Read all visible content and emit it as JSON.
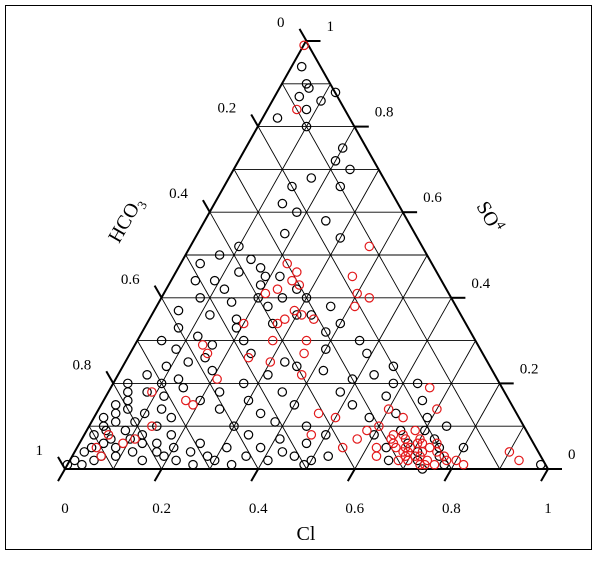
{
  "chart_data": {
    "type": "scatter",
    "subtype": "ternary",
    "axes": {
      "bottom": {
        "label": "Cl",
        "range": [
          0,
          1
        ]
      },
      "left": {
        "label": "HCO",
        "label_sub": "3",
        "range": [
          0,
          1
        ]
      },
      "right": {
        "label": "SO",
        "label_sub": "4",
        "range": [
          0,
          1
        ]
      }
    },
    "bottom_ticks": [
      "0",
      "0.2",
      "0.4",
      "0.6",
      "0.8",
      "1"
    ],
    "left_ticks": [
      "1",
      "0.8",
      "0.6",
      "0.4",
      "0.2",
      "0"
    ],
    "right_ticks": [
      "1",
      "0.8",
      "0.6",
      "0.4",
      "0.2",
      "0"
    ],
    "grid": true,
    "grid_step": 0.1,
    "colors": {
      "series_black": "#000000",
      "series_red": "#e31a1c"
    },
    "series": [
      {
        "color": "#000000",
        "points": [
          {
            "so4": 0.01,
            "cl": 0.0
          },
          {
            "so4": 0.02,
            "cl": 0.01
          },
          {
            "so4": 0.01,
            "cl": 0.03
          },
          {
            "so4": 0.02,
            "cl": 0.05
          },
          {
            "so4": 0.04,
            "cl": 0.02
          },
          {
            "so4": 0.05,
            "cl": 0.03
          },
          {
            "so4": 0.03,
            "cl": 0.06
          },
          {
            "so4": 0.06,
            "cl": 0.05
          },
          {
            "so4": 0.08,
            "cl": 0.02
          },
          {
            "so4": 0.07,
            "cl": 0.06
          },
          {
            "so4": 0.09,
            "cl": 0.04
          },
          {
            "so4": 0.1,
            "cl": 0.03
          },
          {
            "so4": 0.11,
            "cl": 0.05
          },
          {
            "so4": 0.12,
            "cl": 0.02
          },
          {
            "so4": 0.13,
            "cl": 0.04
          },
          {
            "so4": 0.14,
            "cl": 0.06
          },
          {
            "so4": 0.15,
            "cl": 0.03
          },
          {
            "so4": 0.16,
            "cl": 0.05
          },
          {
            "so4": 0.18,
            "cl": 0.04
          },
          {
            "so4": 0.2,
            "cl": 0.03
          },
          {
            "so4": 0.03,
            "cl": 0.09
          },
          {
            "so4": 0.05,
            "cl": 0.08
          },
          {
            "so4": 0.07,
            "cl": 0.1
          },
          {
            "so4": 0.09,
            "cl": 0.08
          },
          {
            "so4": 0.11,
            "cl": 0.09
          },
          {
            "so4": 0.13,
            "cl": 0.1
          },
          {
            "so4": 0.04,
            "cl": 0.12
          },
          {
            "so4": 0.06,
            "cl": 0.13
          },
          {
            "so4": 0.08,
            "cl": 0.12
          },
          {
            "so4": 0.1,
            "cl": 0.14
          },
          {
            "so4": 0.02,
            "cl": 0.15
          },
          {
            "so4": 0.04,
            "cl": 0.17
          },
          {
            "so4": 0.06,
            "cl": 0.16
          },
          {
            "so4": 0.03,
            "cl": 0.19
          },
          {
            "so4": 0.05,
            "cl": 0.2
          },
          {
            "so4": 0.08,
            "cl": 0.18
          },
          {
            "so4": 0.12,
            "cl": 0.16
          },
          {
            "so4": 0.14,
            "cl": 0.13
          },
          {
            "so4": 0.02,
            "cl": 0.22
          },
          {
            "so4": 0.04,
            "cl": 0.24
          },
          {
            "so4": 0.01,
            "cl": 0.26
          },
          {
            "so4": 0.03,
            "cl": 0.28
          },
          {
            "so4": 0.06,
            "cl": 0.25
          },
          {
            "so4": 0.02,
            "cl": 0.3
          },
          {
            "so4": 0.05,
            "cl": 0.31
          },
          {
            "so4": 0.01,
            "cl": 0.34
          },
          {
            "so4": 0.03,
            "cl": 0.36
          },
          {
            "so4": 0.05,
            "cl": 0.38
          },
          {
            "so4": 0.08,
            "cl": 0.34
          },
          {
            "so4": 0.1,
            "cl": 0.3
          },
          {
            "so4": 0.02,
            "cl": 0.41
          },
          {
            "so4": 0.04,
            "cl": 0.43
          },
          {
            "so4": 0.07,
            "cl": 0.41
          },
          {
            "so4": 0.03,
            "cl": 0.46
          },
          {
            "so4": 0.06,
            "cl": 0.47
          },
          {
            "so4": 0.01,
            "cl": 0.49
          },
          {
            "so4": 0.02,
            "cl": 0.5
          },
          {
            "so4": 0.03,
            "cl": 0.53
          },
          {
            "so4": 0.08,
            "cl": 0.5
          },
          {
            "so4": 0.1,
            "cl": 0.45
          },
          {
            "so4": 0.18,
            "cl": 0.08
          },
          {
            "so4": 0.2,
            "cl": 0.1
          },
          {
            "so4": 0.22,
            "cl": 0.06
          },
          {
            "so4": 0.24,
            "cl": 0.09
          },
          {
            "so4": 0.17,
            "cl": 0.12
          },
          {
            "so4": 0.19,
            "cl": 0.15
          },
          {
            "so4": 0.21,
            "cl": 0.13
          },
          {
            "so4": 0.25,
            "cl": 0.13
          },
          {
            "so4": 0.26,
            "cl": 0.16
          },
          {
            "so4": 0.23,
            "cl": 0.19
          },
          {
            "so4": 0.16,
            "cl": 0.2
          },
          {
            "so4": 0.18,
            "cl": 0.23
          },
          {
            "so4": 0.14,
            "cl": 0.25
          },
          {
            "so4": 0.2,
            "cl": 0.27
          },
          {
            "so4": 0.16,
            "cl": 0.3
          },
          {
            "so4": 0.22,
            "cl": 0.31
          },
          {
            "so4": 0.13,
            "cl": 0.34
          },
          {
            "so4": 0.18,
            "cl": 0.36
          },
          {
            "so4": 0.11,
            "cl": 0.38
          },
          {
            "so4": 0.15,
            "cl": 0.4
          },
          {
            "so4": 0.28,
            "cl": 0.09
          },
          {
            "so4": 0.31,
            "cl": 0.12
          },
          {
            "so4": 0.29,
            "cl": 0.16
          },
          {
            "so4": 0.33,
            "cl": 0.19
          },
          {
            "so4": 0.3,
            "cl": 0.22
          },
          {
            "so4": 0.27,
            "cl": 0.25
          },
          {
            "so4": 0.34,
            "cl": 0.26
          },
          {
            "so4": 0.38,
            "cl": 0.23
          },
          {
            "so4": 0.36,
            "cl": 0.3
          },
          {
            "so4": 0.25,
            "cl": 0.33
          },
          {
            "so4": 0.3,
            "cl": 0.05
          },
          {
            "so4": 0.33,
            "cl": 0.07
          },
          {
            "so4": 0.36,
            "cl": 0.12
          },
          {
            "so4": 0.39,
            "cl": 0.15
          },
          {
            "so4": 0.42,
            "cl": 0.12
          },
          {
            "so4": 0.4,
            "cl": 0.08
          },
          {
            "so4": 0.37,
            "cl": 0.05
          },
          {
            "so4": 0.44,
            "cl": 0.09
          },
          {
            "so4": 0.46,
            "cl": 0.13
          },
          {
            "so4": 0.35,
            "cl": 0.18
          },
          {
            "so4": 0.4,
            "cl": 0.2
          },
          {
            "so4": 0.43,
            "cl": 0.19
          },
          {
            "so4": 0.45,
            "cl": 0.19
          },
          {
            "so4": 0.47,
            "cl": 0.17
          },
          {
            "so4": 0.45,
            "cl": 0.22
          },
          {
            "so4": 0.49,
            "cl": 0.14
          },
          {
            "so4": 0.52,
            "cl": 0.1
          },
          {
            "so4": 0.5,
            "cl": 0.07
          },
          {
            "so4": 0.44,
            "cl": 0.05
          },
          {
            "so4": 0.48,
            "cl": 0.04
          },
          {
            "so4": 0.4,
            "cl": 0.25
          },
          {
            "so4": 0.42,
            "cl": 0.27
          },
          {
            "so4": 0.4,
            "cl": 0.3
          },
          {
            "so4": 0.36,
            "cl": 0.33
          },
          {
            "so4": 0.38,
            "cl": 0.36
          },
          {
            "so4": 0.32,
            "cl": 0.38
          },
          {
            "so4": 0.34,
            "cl": 0.4
          },
          {
            "so4": 0.28,
            "cl": 0.4
          },
          {
            "so4": 0.23,
            "cl": 0.42
          },
          {
            "so4": 0.24,
            "cl": 0.36
          },
          {
            "so4": 0.55,
            "cl": 0.18
          },
          {
            "so4": 0.6,
            "cl": 0.18
          },
          {
            "so4": 0.62,
            "cl": 0.14
          },
          {
            "so4": 0.66,
            "cl": 0.14
          },
          {
            "so4": 0.68,
            "cl": 0.17
          },
          {
            "so4": 0.58,
            "cl": 0.25
          },
          {
            "so4": 0.54,
            "cl": 0.3
          },
          {
            "so4": 0.66,
            "cl": 0.24
          },
          {
            "so4": 0.7,
            "cl": 0.24
          },
          {
            "so4": 0.72,
            "cl": 0.2
          },
          {
            "so4": 0.8,
            "cl": 0.1
          },
          {
            "so4": 0.87,
            "cl": 0.05
          },
          {
            "so4": 0.84,
            "cl": 0.08
          },
          {
            "so4": 0.86,
            "cl": 0.1
          },
          {
            "so4": 0.89,
            "cl": 0.06
          },
          {
            "so4": 0.9,
            "cl": 0.05
          },
          {
            "so4": 0.94,
            "cl": 0.02
          },
          {
            "so4": 0.88,
            "cl": 0.12
          },
          {
            "so4": 0.75,
            "cl": 0.2
          },
          {
            "so4": 0.82,
            "cl": 0.03
          },
          {
            "so4": 0.18,
            "cl": 0.48
          },
          {
            "so4": 0.15,
            "cl": 0.52
          },
          {
            "so4": 0.12,
            "cl": 0.57
          },
          {
            "so4": 0.17,
            "cl": 0.58
          },
          {
            "so4": 0.2,
            "cl": 0.58
          },
          {
            "so4": 0.08,
            "cl": 0.6
          },
          {
            "so4": 0.13,
            "cl": 0.62
          },
          {
            "so4": 0.05,
            "cl": 0.64
          },
          {
            "so4": 0.02,
            "cl": 0.66
          },
          {
            "so4": 0.09,
            "cl": 0.65
          },
          {
            "so4": 0.06,
            "cl": 0.68
          },
          {
            "so4": 0.09,
            "cl": 0.7
          },
          {
            "so4": 0.04,
            "cl": 0.71
          },
          {
            "so4": 0.02,
            "cl": 0.72
          },
          {
            "so4": 0.07,
            "cl": 0.73
          },
          {
            "so4": 0.05,
            "cl": 0.75
          },
          {
            "so4": 0.0,
            "cl": 0.74
          },
          {
            "so4": 0.03,
            "cl": 0.76
          },
          {
            "so4": 0.01,
            "cl": 0.78
          },
          {
            "so4": 0.21,
            "cl": 0.49
          },
          {
            "so4": 0.22,
            "cl": 0.53
          },
          {
            "so4": 0.24,
            "cl": 0.56
          },
          {
            "so4": 0.2,
            "cl": 0.63
          },
          {
            "so4": 0.16,
            "cl": 0.66
          },
          {
            "so4": 0.12,
            "cl": 0.69
          },
          {
            "so4": 0.1,
            "cl": 0.74
          },
          {
            "so4": 0.05,
            "cl": 0.8
          },
          {
            "so4": 0.3,
            "cl": 0.46
          },
          {
            "so4": 0.27,
            "cl": 0.49
          },
          {
            "so4": 0.01,
            "cl": 0.98
          }
        ]
      },
      {
        "color": "#e31a1c",
        "points": [
          {
            "so4": 0.99,
            "cl": 0.0
          },
          {
            "so4": 0.84,
            "cl": 0.06
          },
          {
            "so4": 0.08,
            "cl": 0.05
          },
          {
            "so4": 0.1,
            "cl": 0.13
          },
          {
            "so4": 0.16,
            "cl": 0.17
          },
          {
            "so4": 0.15,
            "cl": 0.19
          },
          {
            "so4": 0.27,
            "cl": 0.16
          },
          {
            "so4": 0.21,
            "cl": 0.21
          },
          {
            "so4": 0.29,
            "cl": 0.14
          },
          {
            "so4": 0.34,
            "cl": 0.2
          },
          {
            "so4": 0.26,
            "cl": 0.25
          },
          {
            "so4": 0.34,
            "cl": 0.27
          },
          {
            "so4": 0.25,
            "cl": 0.3
          },
          {
            "so4": 0.41,
            "cl": 0.21
          },
          {
            "so4": 0.42,
            "cl": 0.23
          },
          {
            "so4": 0.43,
            "cl": 0.27
          },
          {
            "so4": 0.44,
            "cl": 0.25
          },
          {
            "so4": 0.46,
            "cl": 0.25
          },
          {
            "so4": 0.37,
            "cl": 0.29
          },
          {
            "so4": 0.36,
            "cl": 0.31
          },
          {
            "so4": 0.35,
            "cl": 0.34
          },
          {
            "so4": 0.3,
            "cl": 0.35
          },
          {
            "so4": 0.41,
            "cl": 0.4
          },
          {
            "so4": 0.38,
            "cl": 0.41
          },
          {
            "so4": 0.4,
            "cl": 0.43
          },
          {
            "so4": 0.45,
            "cl": 0.37
          },
          {
            "so4": 0.52,
            "cl": 0.37
          },
          {
            "so4": 0.12,
            "cl": 0.5
          },
          {
            "so4": 0.05,
            "cl": 0.55
          },
          {
            "so4": 0.07,
            "cl": 0.57
          },
          {
            "so4": 0.09,
            "cl": 0.58
          },
          {
            "so4": 0.14,
            "cl": 0.6
          },
          {
            "so4": 0.1,
            "cl": 0.6
          },
          {
            "so4": 0.05,
            "cl": 0.62
          },
          {
            "so4": 0.03,
            "cl": 0.63
          },
          {
            "so4": 0.19,
            "cl": 0.66
          },
          {
            "so4": 0.05,
            "cl": 0.66
          },
          {
            "so4": 0.04,
            "cl": 0.68
          },
          {
            "so4": 0.06,
            "cl": 0.7
          },
          {
            "so4": 0.02,
            "cl": 0.7
          },
          {
            "so4": 0.04,
            "cl": 0.72
          },
          {
            "so4": 0.05,
            "cl": 0.73
          },
          {
            "so4": 0.06,
            "cl": 0.74
          },
          {
            "so4": 0.01,
            "cl": 0.76
          },
          {
            "so4": 0.02,
            "cl": 0.7
          },
          {
            "so4": 0.03,
            "cl": 0.72
          },
          {
            "so4": 0.03,
            "cl": 0.71
          },
          {
            "so4": 0.04,
            "cl": 0.69
          },
          {
            "so4": 0.04,
            "cl": 0.75
          },
          {
            "so4": 0.05,
            "cl": 0.68
          },
          {
            "so4": 0.06,
            "cl": 0.65
          },
          {
            "so4": 0.07,
            "cl": 0.64
          },
          {
            "so4": 0.07,
            "cl": 0.67
          },
          {
            "so4": 0.08,
            "cl": 0.64
          },
          {
            "so4": 0.08,
            "cl": 0.66
          },
          {
            "so4": 0.02,
            "cl": 0.74
          },
          {
            "so4": 0.01,
            "cl": 0.74
          },
          {
            "so4": 0.01,
            "cl": 0.73
          },
          {
            "so4": 0.03,
            "cl": 0.69
          },
          {
            "so4": 0.02,
            "cl": 0.68
          },
          {
            "so4": 0.05,
            "cl": 0.69
          },
          {
            "so4": 0.06,
            "cl": 0.71
          },
          {
            "so4": 0.07,
            "cl": 0.7
          },
          {
            "so4": 0.09,
            "cl": 0.68
          },
          {
            "so4": 0.12,
            "cl": 0.64
          },
          {
            "so4": 0.14,
            "cl": 0.7
          },
          {
            "so4": 0.02,
            "cl": 0.8
          },
          {
            "so4": 0.01,
            "cl": 0.82
          },
          {
            "so4": 0.02,
            "cl": 0.78
          },
          {
            "so4": 0.03,
            "cl": 0.77
          },
          {
            "so4": 0.04,
            "cl": 0.9
          },
          {
            "so4": 0.02,
            "cl": 0.93
          },
          {
            "so4": 0.35,
            "cl": 0.28
          },
          {
            "so4": 0.27,
            "cl": 0.36
          },
          {
            "so4": 0.22,
            "cl": 0.38
          },
          {
            "so4": 0.3,
            "cl": 0.28
          },
          {
            "so4": 0.08,
            "cl": 0.47
          },
          {
            "so4": 0.13,
            "cl": 0.46
          },
          {
            "so4": 0.03,
            "cl": 0.06
          },
          {
            "so4": 0.05,
            "cl": 0.04
          },
          {
            "so4": 0.06,
            "cl": 0.09
          },
          {
            "so4": 0.07,
            "cl": 0.11
          },
          {
            "so4": 0.18,
            "cl": 0.09
          },
          {
            "so4": 0.48,
            "cl": 0.22
          }
        ]
      }
    ]
  },
  "labels": {
    "bottom_title": "Cl",
    "left_title": "HCO",
    "left_title_sub": "3",
    "right_title": "SO",
    "right_title_sub": "4"
  }
}
